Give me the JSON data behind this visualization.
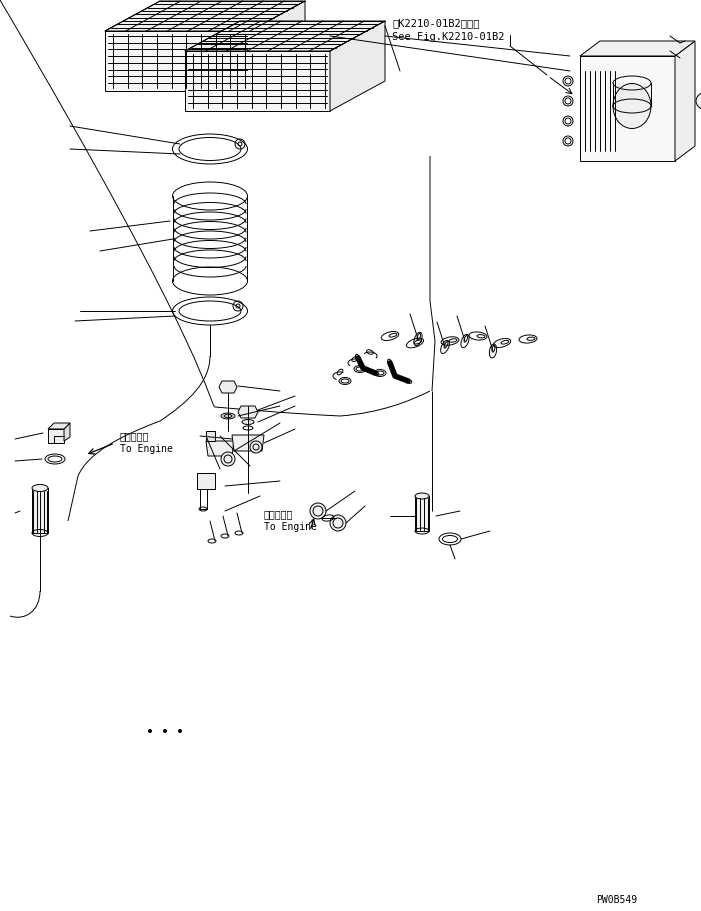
{
  "fig_ref_text_line1": "第K2210-01B2図参照",
  "fig_ref_text_line2": "See Fig.K2210-01B2",
  "label_engine1_line1": "エンジンへ",
  "label_engine1_line2": "To Engine",
  "label_engine2_line1": "エンジンへ",
  "label_engine2_line2": "To Engine",
  "part_id": "PW0B549",
  "bg_color": "#ffffff",
  "line_color": "#000000",
  "lw": 0.7
}
